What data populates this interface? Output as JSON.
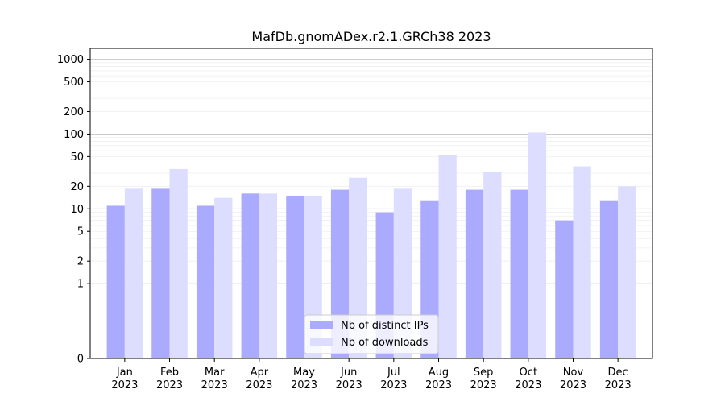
{
  "chart_data": {
    "type": "bar",
    "title": "MafDb.gnomADex.r2.1.GRCh38 2023",
    "xlabel": "",
    "ylabel": "",
    "y_scale": "symlog",
    "yticks": [
      0,
      1,
      2,
      5,
      10,
      20,
      50,
      100,
      200,
      500,
      1000
    ],
    "ylim": [
      0,
      1400
    ],
    "categories": [
      "Jan\n2023",
      "Feb\n2023",
      "Mar\n2023",
      "Apr\n2023",
      "May\n2023",
      "Jun\n2023",
      "Jul\n2023",
      "Aug\n2023",
      "Sep\n2023",
      "Oct\n2023",
      "Nov\n2023",
      "Dec\n2023"
    ],
    "series": [
      {
        "name": "Nb of distinct IPs",
        "color": "#aaaaff",
        "values": [
          11,
          19,
          11,
          16,
          15,
          18,
          9,
          13,
          18,
          18,
          7,
          13
        ]
      },
      {
        "name": "Nb of downloads",
        "color": "#ddddff",
        "values": [
          19,
          34,
          14,
          16,
          15,
          26,
          19,
          52,
          31,
          105,
          37,
          20
        ]
      }
    ],
    "legend": "bottom-center",
    "grid": "horizontal"
  }
}
